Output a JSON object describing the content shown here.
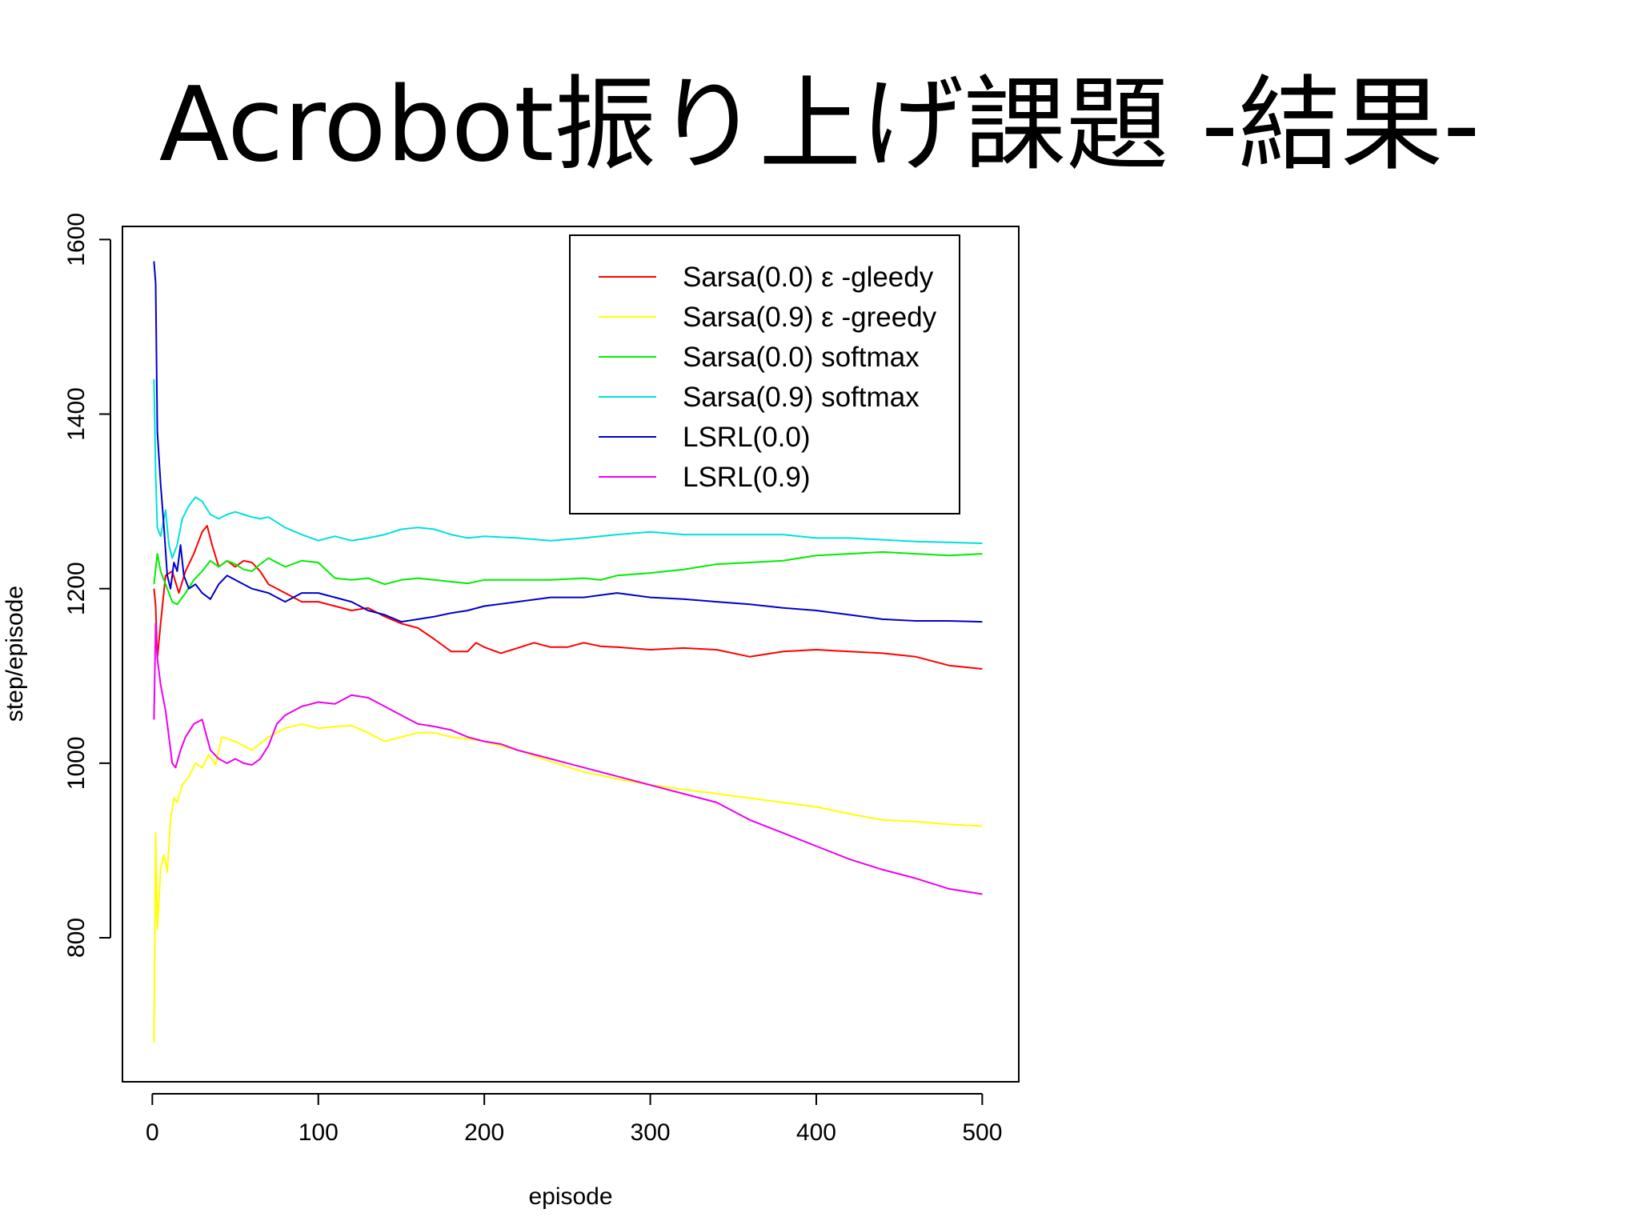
{
  "slide": {
    "title": "Acrobot振り上げ課題 -結果-"
  },
  "chart_data": {
    "type": "line",
    "title": "",
    "xlabel": "episode",
    "ylabel": "step/episode",
    "xlim": [
      -18,
      522
    ],
    "ylim": [
      635,
      1615
    ],
    "xticks": [
      0,
      100,
      200,
      300,
      400,
      500
    ],
    "yticks": [
      800,
      1000,
      1200,
      1400,
      1600
    ],
    "grid": false,
    "legend_position": "top-right",
    "series": [
      {
        "name": "Sarsa(0.0) ε -gleedy",
        "color": "#ff0000",
        "points": [
          [
            1,
            1200
          ],
          [
            2,
            1180
          ],
          [
            3,
            1120
          ],
          [
            5,
            1160
          ],
          [
            8,
            1215
          ],
          [
            12,
            1220
          ],
          [
            16,
            1195
          ],
          [
            20,
            1220
          ],
          [
            25,
            1240
          ],
          [
            30,
            1265
          ],
          [
            33,
            1272
          ],
          [
            36,
            1250
          ],
          [
            40,
            1225
          ],
          [
            45,
            1232
          ],
          [
            50,
            1225
          ],
          [
            55,
            1232
          ],
          [
            60,
            1230
          ],
          [
            65,
            1220
          ],
          [
            70,
            1205
          ],
          [
            80,
            1195
          ],
          [
            90,
            1185
          ],
          [
            100,
            1185
          ],
          [
            110,
            1180
          ],
          [
            120,
            1175
          ],
          [
            130,
            1178
          ],
          [
            140,
            1168
          ],
          [
            150,
            1160
          ],
          [
            160,
            1155
          ],
          [
            170,
            1142
          ],
          [
            180,
            1128
          ],
          [
            190,
            1128
          ],
          [
            195,
            1138
          ],
          [
            200,
            1133
          ],
          [
            210,
            1126
          ],
          [
            220,
            1132
          ],
          [
            230,
            1138
          ],
          [
            240,
            1133
          ],
          [
            250,
            1133
          ],
          [
            260,
            1138
          ],
          [
            270,
            1134
          ],
          [
            280,
            1133
          ],
          [
            300,
            1130
          ],
          [
            320,
            1132
          ],
          [
            340,
            1130
          ],
          [
            360,
            1122
          ],
          [
            380,
            1128
          ],
          [
            400,
            1130
          ],
          [
            420,
            1128
          ],
          [
            440,
            1126
          ],
          [
            460,
            1122
          ],
          [
            480,
            1112
          ],
          [
            500,
            1108
          ]
        ]
      },
      {
        "name": "Sarsa(0.9) ε -greedy",
        "color": "#ffff00",
        "points": [
          [
            1,
            680
          ],
          [
            2,
            920
          ],
          [
            3,
            810
          ],
          [
            5,
            880
          ],
          [
            7,
            895
          ],
          [
            9,
            875
          ],
          [
            11,
            935
          ],
          [
            13,
            960
          ],
          [
            15,
            955
          ],
          [
            18,
            975
          ],
          [
            22,
            985
          ],
          [
            26,
            1000
          ],
          [
            30,
            995
          ],
          [
            34,
            1010
          ],
          [
            38,
            998
          ],
          [
            42,
            1030
          ],
          [
            50,
            1025
          ],
          [
            60,
            1015
          ],
          [
            70,
            1030
          ],
          [
            80,
            1040
          ],
          [
            90,
            1045
          ],
          [
            100,
            1040
          ],
          [
            110,
            1042
          ],
          [
            120,
            1043
          ],
          [
            130,
            1035
          ],
          [
            140,
            1025
          ],
          [
            150,
            1030
          ],
          [
            160,
            1035
          ],
          [
            170,
            1035
          ],
          [
            180,
            1030
          ],
          [
            190,
            1028
          ],
          [
            200,
            1025
          ],
          [
            220,
            1015
          ],
          [
            240,
            1002
          ],
          [
            260,
            990
          ],
          [
            280,
            982
          ],
          [
            300,
            975
          ],
          [
            320,
            970
          ],
          [
            340,
            965
          ],
          [
            360,
            960
          ],
          [
            380,
            955
          ],
          [
            400,
            950
          ],
          [
            420,
            942
          ],
          [
            440,
            935
          ],
          [
            460,
            933
          ],
          [
            480,
            930
          ],
          [
            500,
            928
          ]
        ]
      },
      {
        "name": "Sarsa(0.0) softmax",
        "color": "#00ee00",
        "points": [
          [
            1,
            1205
          ],
          [
            3,
            1240
          ],
          [
            5,
            1220
          ],
          [
            8,
            1205
          ],
          [
            12,
            1185
          ],
          [
            15,
            1182
          ],
          [
            20,
            1195
          ],
          [
            25,
            1210
          ],
          [
            30,
            1220
          ],
          [
            35,
            1232
          ],
          [
            40,
            1225
          ],
          [
            45,
            1232
          ],
          [
            50,
            1228
          ],
          [
            55,
            1222
          ],
          [
            60,
            1220
          ],
          [
            65,
            1228
          ],
          [
            70,
            1235
          ],
          [
            80,
            1225
          ],
          [
            90,
            1232
          ],
          [
            100,
            1230
          ],
          [
            110,
            1212
          ],
          [
            120,
            1210
          ],
          [
            130,
            1212
          ],
          [
            140,
            1205
          ],
          [
            150,
            1210
          ],
          [
            160,
            1212
          ],
          [
            170,
            1210
          ],
          [
            180,
            1208
          ],
          [
            190,
            1206
          ],
          [
            200,
            1210
          ],
          [
            220,
            1210
          ],
          [
            240,
            1210
          ],
          [
            260,
            1212
          ],
          [
            270,
            1210
          ],
          [
            280,
            1215
          ],
          [
            300,
            1218
          ],
          [
            320,
            1222
          ],
          [
            340,
            1228
          ],
          [
            360,
            1230
          ],
          [
            380,
            1232
          ],
          [
            400,
            1238
          ],
          [
            420,
            1240
          ],
          [
            440,
            1242
          ],
          [
            460,
            1240
          ],
          [
            480,
            1238
          ],
          [
            500,
            1240
          ]
        ]
      },
      {
        "name": "Sarsa(0.9) softmax",
        "color": "#00e0e0",
        "points": [
          [
            1,
            1440
          ],
          [
            2,
            1330
          ],
          [
            3,
            1270
          ],
          [
            5,
            1260
          ],
          [
            8,
            1290
          ],
          [
            10,
            1250
          ],
          [
            12,
            1235
          ],
          [
            15,
            1250
          ],
          [
            18,
            1280
          ],
          [
            22,
            1295
          ],
          [
            26,
            1305
          ],
          [
            30,
            1300
          ],
          [
            35,
            1285
          ],
          [
            40,
            1280
          ],
          [
            45,
            1285
          ],
          [
            50,
            1288
          ],
          [
            55,
            1285
          ],
          [
            60,
            1282
          ],
          [
            65,
            1280
          ],
          [
            70,
            1282
          ],
          [
            80,
            1270
          ],
          [
            90,
            1262
          ],
          [
            100,
            1255
          ],
          [
            110,
            1260
          ],
          [
            120,
            1255
          ],
          [
            130,
            1258
          ],
          [
            140,
            1262
          ],
          [
            150,
            1268
          ],
          [
            160,
            1270
          ],
          [
            170,
            1268
          ],
          [
            180,
            1262
          ],
          [
            190,
            1258
          ],
          [
            200,
            1260
          ],
          [
            220,
            1258
          ],
          [
            240,
            1255
          ],
          [
            260,
            1258
          ],
          [
            280,
            1262
          ],
          [
            300,
            1265
          ],
          [
            320,
            1262
          ],
          [
            340,
            1262
          ],
          [
            360,
            1262
          ],
          [
            380,
            1262
          ],
          [
            400,
            1258
          ],
          [
            420,
            1258
          ],
          [
            440,
            1256
          ],
          [
            460,
            1254
          ],
          [
            480,
            1253
          ],
          [
            500,
            1252
          ]
        ]
      },
      {
        "name": "LSRL(0.0)",
        "color": "#0000cc",
        "points": [
          [
            1,
            1575
          ],
          [
            2,
            1550
          ],
          [
            3,
            1380
          ],
          [
            5,
            1320
          ],
          [
            7,
            1270
          ],
          [
            9,
            1215
          ],
          [
            11,
            1200
          ],
          [
            13,
            1230
          ],
          [
            15,
            1220
          ],
          [
            17,
            1250
          ],
          [
            19,
            1215
          ],
          [
            22,
            1200
          ],
          [
            26,
            1205
          ],
          [
            30,
            1195
          ],
          [
            35,
            1188
          ],
          [
            40,
            1205
          ],
          [
            45,
            1215
          ],
          [
            50,
            1210
          ],
          [
            55,
            1205
          ],
          [
            60,
            1200
          ],
          [
            70,
            1195
          ],
          [
            80,
            1185
          ],
          [
            90,
            1195
          ],
          [
            100,
            1195
          ],
          [
            110,
            1190
          ],
          [
            120,
            1185
          ],
          [
            130,
            1175
          ],
          [
            140,
            1170
          ],
          [
            150,
            1162
          ],
          [
            160,
            1165
          ],
          [
            170,
            1168
          ],
          [
            180,
            1172
          ],
          [
            190,
            1175
          ],
          [
            200,
            1180
          ],
          [
            220,
            1185
          ],
          [
            240,
            1190
          ],
          [
            260,
            1190
          ],
          [
            280,
            1195
          ],
          [
            300,
            1190
          ],
          [
            320,
            1188
          ],
          [
            340,
            1185
          ],
          [
            360,
            1182
          ],
          [
            380,
            1178
          ],
          [
            400,
            1175
          ],
          [
            420,
            1170
          ],
          [
            440,
            1165
          ],
          [
            460,
            1163
          ],
          [
            480,
            1163
          ],
          [
            500,
            1162
          ]
        ]
      },
      {
        "name": "LSRL(0.9)",
        "color": "#ee00ee",
        "points": [
          [
            1,
            1050
          ],
          [
            2,
            1160
          ],
          [
            3,
            1120
          ],
          [
            5,
            1090
          ],
          [
            8,
            1060
          ],
          [
            10,
            1030
          ],
          [
            12,
            1000
          ],
          [
            14,
            995
          ],
          [
            17,
            1015
          ],
          [
            20,
            1030
          ],
          [
            25,
            1045
          ],
          [
            30,
            1050
          ],
          [
            35,
            1015
          ],
          [
            40,
            1005
          ],
          [
            45,
            1000
          ],
          [
            50,
            1005
          ],
          [
            55,
            1000
          ],
          [
            60,
            998
          ],
          [
            65,
            1005
          ],
          [
            70,
            1020
          ],
          [
            75,
            1045
          ],
          [
            80,
            1055
          ],
          [
            90,
            1065
          ],
          [
            100,
            1070
          ],
          [
            110,
            1068
          ],
          [
            120,
            1078
          ],
          [
            130,
            1075
          ],
          [
            140,
            1065
          ],
          [
            150,
            1055
          ],
          [
            160,
            1045
          ],
          [
            170,
            1042
          ],
          [
            180,
            1038
          ],
          [
            190,
            1030
          ],
          [
            200,
            1025
          ],
          [
            210,
            1022
          ],
          [
            220,
            1015
          ],
          [
            230,
            1010
          ],
          [
            240,
            1005
          ],
          [
            260,
            995
          ],
          [
            280,
            985
          ],
          [
            300,
            975
          ],
          [
            320,
            965
          ],
          [
            340,
            955
          ],
          [
            360,
            935
          ],
          [
            380,
            920
          ],
          [
            400,
            905
          ],
          [
            420,
            890
          ],
          [
            440,
            878
          ],
          [
            460,
            868
          ],
          [
            480,
            856
          ],
          [
            500,
            850
          ]
        ]
      }
    ]
  }
}
